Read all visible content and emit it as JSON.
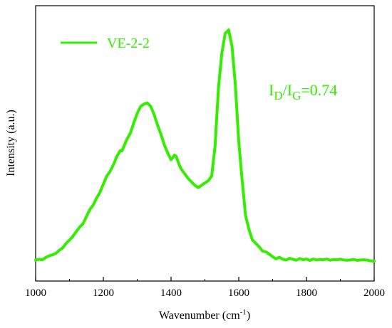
{
  "chart_data": {
    "type": "line",
    "xlabel": "Wavenumber (cm",
    "xlabel_sup": "-1",
    "xlabel_end": ")",
    "ylabel": "Intensity (a.u.)",
    "xlim": [
      1000,
      2000
    ],
    "ylim": [
      0,
      1
    ],
    "xticks": [
      1000,
      1200,
      1400,
      1600,
      1800,
      2000
    ],
    "xtick_labels": [
      "1000",
      "1200",
      "1400",
      "1600",
      "1800",
      "2000"
    ],
    "y_ticks_shown": false,
    "grid": false,
    "legend_position": "top-left",
    "series": [
      {
        "name": "VE-2-2",
        "color": "#33ee00",
        "x": [
          1000,
          1010,
          1020,
          1030,
          1040,
          1050,
          1060,
          1070,
          1080,
          1090,
          1100,
          1110,
          1120,
          1130,
          1140,
          1150,
          1160,
          1170,
          1180,
          1190,
          1200,
          1210,
          1220,
          1230,
          1240,
          1250,
          1255,
          1260,
          1270,
          1280,
          1290,
          1300,
          1310,
          1320,
          1330,
          1340,
          1350,
          1360,
          1370,
          1380,
          1390,
          1400,
          1410,
          1415,
          1420,
          1425,
          1430,
          1440,
          1450,
          1460,
          1470,
          1480,
          1490,
          1500,
          1510,
          1520,
          1530,
          1540,
          1550,
          1560,
          1570,
          1580,
          1590,
          1595,
          1600,
          1610,
          1620,
          1630,
          1640,
          1650,
          1660,
          1670,
          1680,
          1690,
          1700,
          1710,
          1720,
          1730,
          1740,
          1750,
          1760,
          1770,
          1780,
          1790,
          1800,
          1810,
          1820,
          1830,
          1840,
          1850,
          1860,
          1870,
          1880,
          1890,
          1900,
          1910,
          1920,
          1930,
          1940,
          1950,
          1960,
          1970,
          1980,
          1990,
          2000
        ],
        "y": [
          0.007,
          0.011,
          0.009,
          0.019,
          0.026,
          0.03,
          0.037,
          0.05,
          0.06,
          0.08,
          0.094,
          0.11,
          0.13,
          0.15,
          0.165,
          0.195,
          0.225,
          0.245,
          0.275,
          0.3,
          0.335,
          0.37,
          0.39,
          0.42,
          0.455,
          0.48,
          0.478,
          0.495,
          0.53,
          0.555,
          0.6,
          0.64,
          0.67,
          0.68,
          0.685,
          0.67,
          0.635,
          0.59,
          0.55,
          0.505,
          0.47,
          0.44,
          0.46,
          0.455,
          0.435,
          0.415,
          0.4,
          0.38,
          0.36,
          0.345,
          0.33,
          0.32,
          0.33,
          0.34,
          0.35,
          0.37,
          0.5,
          0.75,
          0.9,
          0.985,
          1.0,
          0.93,
          0.76,
          0.64,
          0.52,
          0.35,
          0.2,
          0.14,
          0.095,
          0.08,
          0.065,
          0.047,
          0.043,
          0.033,
          0.022,
          0.013,
          0.02,
          0.011,
          0.008,
          0.015,
          0.011,
          0.007,
          0.014,
          0.009,
          0.012,
          0.006,
          0.012,
          0.008,
          0.01,
          0.009,
          0.012,
          0.007,
          0.01,
          0.009,
          0.011,
          0.008,
          0.007,
          0.008,
          0.01,
          0.006,
          0.008,
          0.009,
          0.007,
          0.004,
          0.003
        ]
      }
    ],
    "annotation": {
      "I1": "I",
      "sub1": "D",
      "slash": "/",
      "I2": "I",
      "sub2": "G",
      "value": "=0.74"
    }
  }
}
